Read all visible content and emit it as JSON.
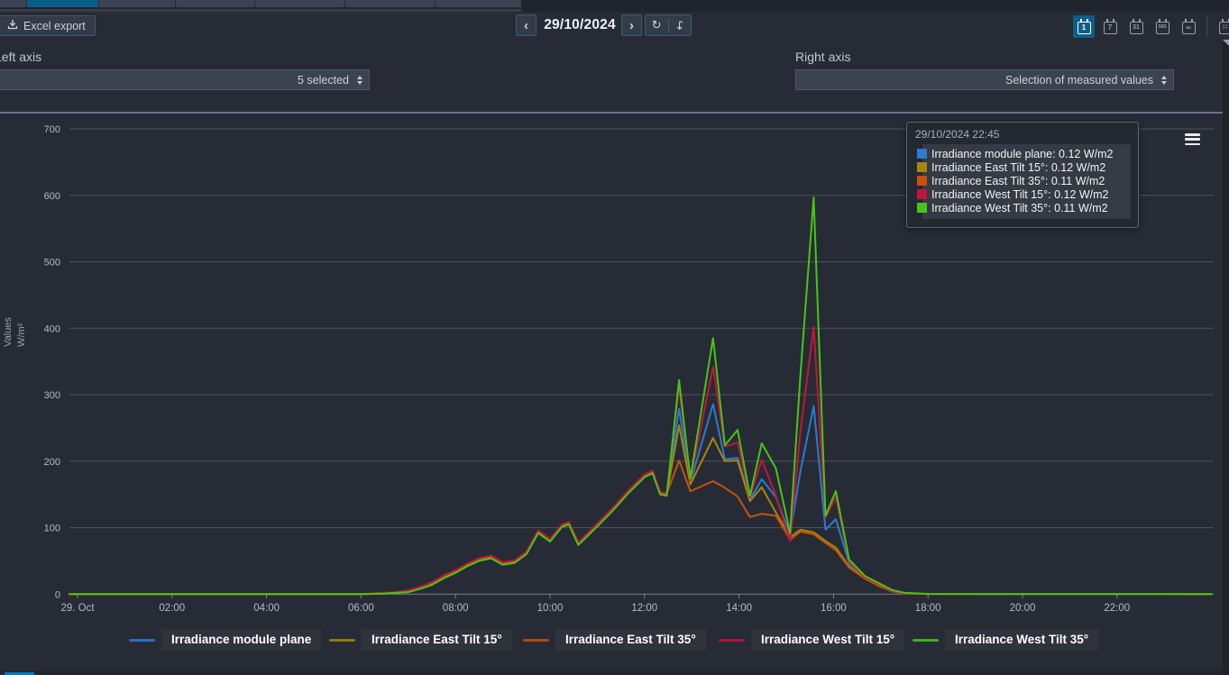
{
  "toolbar": {
    "excel_export_label": "Excel export"
  },
  "date_nav": {
    "prev": "‹",
    "date": "29/10/2024",
    "next": "›",
    "refresh_glyph": "↻",
    "forward_glyph": "↪"
  },
  "period_selector": {
    "items": [
      {
        "id": "day",
        "label": "1",
        "active": true
      },
      {
        "id": "week",
        "label": "7",
        "active": false
      },
      {
        "id": "month",
        "label": "31",
        "active": false
      },
      {
        "id": "year",
        "label": "365",
        "active": false
      },
      {
        "id": "total",
        "label": "∞",
        "active": false
      },
      {
        "id": "custom",
        "label": "∷",
        "active": false
      }
    ]
  },
  "axis_controls": {
    "left_label": "Left axis",
    "left_value": "5 selected",
    "right_label": "Right axis",
    "right_value": "Selection of measured values"
  },
  "tooltip": {
    "header": "29/10/2024 22:45",
    "rows": [
      {
        "text": "Irradiance module plane: 0.12 W/m2"
      },
      {
        "text": "Irradiance East Tilt 15°: 0.12 W/m2"
      },
      {
        "text": "Irradiance East Tilt 35°: 0.11 W/m2"
      },
      {
        "text": "Irradiance West Tilt 15°: 0.12 W/m2"
      },
      {
        "text": "Irradiance West Tilt 35°: 0.11 W/m2"
      }
    ]
  },
  "legend": {
    "items": [
      {
        "label": "Irradiance module plane"
      },
      {
        "label": "Irradiance East Tilt 15°"
      },
      {
        "label": "Irradiance East Tilt 35°"
      },
      {
        "label": "Irradiance West Tilt 15°"
      },
      {
        "label": "Irradiance West Tilt 35°"
      }
    ]
  },
  "chart_data": {
    "type": "line",
    "title": "",
    "grid": true,
    "legend_position": "bottom",
    "y_axis": {
      "title_lines": [
        "Values",
        "W/m²"
      ],
      "min": 0,
      "max": 700,
      "ticks": [
        0,
        100,
        200,
        300,
        400,
        500,
        600,
        700
      ]
    },
    "x_axis": {
      "range_hours": [
        0,
        24
      ],
      "ticks": [
        {
          "hour": 0,
          "label": "29. Oct"
        },
        {
          "hour": 2,
          "label": "02:00"
        },
        {
          "hour": 4,
          "label": "04:00"
        },
        {
          "hour": 6,
          "label": "06:00"
        },
        {
          "hour": 8,
          "label": "08:00"
        },
        {
          "hour": 10,
          "label": "10:00"
        },
        {
          "hour": 12,
          "label": "12:00"
        },
        {
          "hour": 14,
          "label": "14:00"
        },
        {
          "hour": 16,
          "label": "16:00"
        },
        {
          "hour": 18,
          "label": "18:00"
        },
        {
          "hour": 20,
          "label": "20:00"
        },
        {
          "hour": 22,
          "label": "22:00"
        }
      ]
    },
    "unit": "W/m2",
    "series": [
      {
        "name": "Irradiance module plane",
        "color": "#2b7bd4",
        "points": [
          [
            0,
            0
          ],
          [
            6,
            0
          ],
          [
            6.5,
            1
          ],
          [
            6.75,
            2
          ],
          [
            7,
            5
          ],
          [
            7.25,
            10
          ],
          [
            7.5,
            17
          ],
          [
            7.75,
            27
          ],
          [
            8,
            35
          ],
          [
            8.25,
            45
          ],
          [
            8.5,
            53
          ],
          [
            8.75,
            57
          ],
          [
            9,
            47
          ],
          [
            9.25,
            50
          ],
          [
            9.5,
            63
          ],
          [
            9.75,
            95
          ],
          [
            10,
            82
          ],
          [
            10.25,
            104
          ],
          [
            10.4,
            108
          ],
          [
            10.6,
            77
          ],
          [
            10.8,
            91
          ],
          [
            11,
            105
          ],
          [
            11.33,
            129
          ],
          [
            11.67,
            156
          ],
          [
            12,
            179
          ],
          [
            12.17,
            185
          ],
          [
            12.33,
            153
          ],
          [
            12.47,
            151
          ],
          [
            12.73,
            279
          ],
          [
            12.97,
            168
          ],
          [
            13.45,
            286
          ],
          [
            13.7,
            203
          ],
          [
            13.97,
            205
          ],
          [
            14.23,
            142
          ],
          [
            14.48,
            173
          ],
          [
            14.78,
            146
          ],
          [
            15.08,
            90
          ],
          [
            15.3,
            185
          ],
          [
            15.58,
            283
          ],
          [
            15.83,
            97
          ],
          [
            16.05,
            113
          ],
          [
            16.33,
            47
          ],
          [
            16.67,
            26
          ],
          [
            17,
            13
          ],
          [
            17.25,
            5
          ],
          [
            17.5,
            1
          ],
          [
            18,
            0.3
          ],
          [
            24,
            0.12
          ]
        ]
      },
      {
        "name": "Irradiance East Tilt 15°",
        "color": "#a8860d",
        "points": [
          [
            0,
            0
          ],
          [
            6,
            0
          ],
          [
            6.5,
            1
          ],
          [
            6.75,
            2
          ],
          [
            7,
            4
          ],
          [
            7.25,
            9
          ],
          [
            7.5,
            16
          ],
          [
            7.75,
            26
          ],
          [
            8,
            34
          ],
          [
            8.25,
            44
          ],
          [
            8.5,
            52
          ],
          [
            8.75,
            56
          ],
          [
            9,
            46
          ],
          [
            9.25,
            49
          ],
          [
            9.5,
            62
          ],
          [
            9.75,
            94
          ],
          [
            10,
            81
          ],
          [
            10.25,
            103
          ],
          [
            10.4,
            107
          ],
          [
            10.6,
            76
          ],
          [
            10.8,
            90
          ],
          [
            11,
            104
          ],
          [
            11.33,
            128
          ],
          [
            11.67,
            155
          ],
          [
            12,
            178
          ],
          [
            12.17,
            184
          ],
          [
            12.33,
            152
          ],
          [
            12.47,
            150
          ],
          [
            12.73,
            254
          ],
          [
            12.97,
            165
          ],
          [
            13.45,
            235
          ],
          [
            13.7,
            200
          ],
          [
            13.97,
            201
          ],
          [
            14.23,
            140
          ],
          [
            14.48,
            161
          ],
          [
            14.78,
            123
          ],
          [
            15.08,
            86
          ],
          [
            15.3,
            97
          ],
          [
            15.58,
            93
          ],
          [
            15.83,
            80
          ],
          [
            16.05,
            70
          ],
          [
            16.33,
            42
          ],
          [
            16.67,
            24
          ],
          [
            17,
            12
          ],
          [
            17.25,
            4
          ],
          [
            17.5,
            1
          ],
          [
            18,
            0.3
          ],
          [
            24,
            0.12
          ]
        ]
      },
      {
        "name": "Irradiance East Tilt 35°",
        "color": "#c4520e",
        "points": [
          [
            0,
            0
          ],
          [
            6,
            0
          ],
          [
            6.5,
            1
          ],
          [
            6.75,
            3
          ],
          [
            7,
            5
          ],
          [
            7.25,
            10
          ],
          [
            7.5,
            17
          ],
          [
            7.75,
            27
          ],
          [
            8,
            35
          ],
          [
            8.25,
            45
          ],
          [
            8.5,
            53
          ],
          [
            8.75,
            57
          ],
          [
            9,
            47
          ],
          [
            9.25,
            50
          ],
          [
            9.5,
            63
          ],
          [
            9.75,
            95
          ],
          [
            10,
            82
          ],
          [
            10.25,
            104
          ],
          [
            10.4,
            108
          ],
          [
            10.6,
            77
          ],
          [
            10.8,
            91
          ],
          [
            11,
            105
          ],
          [
            11.33,
            129
          ],
          [
            11.67,
            156
          ],
          [
            12,
            179
          ],
          [
            12.17,
            185
          ],
          [
            12.33,
            153
          ],
          [
            12.47,
            151
          ],
          [
            12.73,
            201
          ],
          [
            12.97,
            155
          ],
          [
            13.45,
            170
          ],
          [
            13.7,
            160
          ],
          [
            13.97,
            147
          ],
          [
            14.23,
            116
          ],
          [
            14.48,
            121
          ],
          [
            14.78,
            118
          ],
          [
            15.08,
            82
          ],
          [
            15.3,
            94
          ],
          [
            15.58,
            90
          ],
          [
            15.83,
            77
          ],
          [
            16.05,
            66
          ],
          [
            16.33,
            40
          ],
          [
            16.67,
            23
          ],
          [
            17,
            11
          ],
          [
            17.25,
            4
          ],
          [
            17.5,
            1
          ],
          [
            18,
            0.3
          ],
          [
            24,
            0.11
          ]
        ]
      },
      {
        "name": "Irradiance West Tilt 15°",
        "color": "#c1163c",
        "points": [
          [
            0,
            0
          ],
          [
            6,
            0
          ],
          [
            6.5,
            2
          ],
          [
            6.75,
            3
          ],
          [
            7,
            6
          ],
          [
            7.25,
            11
          ],
          [
            7.5,
            18
          ],
          [
            7.75,
            28
          ],
          [
            8,
            36
          ],
          [
            8.25,
            46
          ],
          [
            8.5,
            54
          ],
          [
            8.75,
            58
          ],
          [
            9,
            48
          ],
          [
            9.25,
            51
          ],
          [
            9.5,
            64
          ],
          [
            9.75,
            96
          ],
          [
            10,
            83
          ],
          [
            10.25,
            105
          ],
          [
            10.4,
            109
          ],
          [
            10.6,
            78
          ],
          [
            10.8,
            92
          ],
          [
            11,
            106
          ],
          [
            11.33,
            130
          ],
          [
            11.67,
            157
          ],
          [
            12,
            180
          ],
          [
            12.17,
            186
          ],
          [
            12.33,
            154
          ],
          [
            12.47,
            152
          ],
          [
            12.73,
            312
          ],
          [
            12.97,
            171
          ],
          [
            13.45,
            342
          ],
          [
            13.7,
            222
          ],
          [
            13.97,
            228
          ],
          [
            14.23,
            146
          ],
          [
            14.48,
            202
          ],
          [
            14.78,
            148
          ],
          [
            15.08,
            80
          ],
          [
            15.3,
            245
          ],
          [
            15.58,
            402
          ],
          [
            15.83,
            115
          ],
          [
            16.05,
            146
          ],
          [
            16.33,
            50
          ],
          [
            16.67,
            25
          ],
          [
            17,
            14
          ],
          [
            17.25,
            5
          ],
          [
            17.5,
            1
          ],
          [
            18,
            0.3
          ],
          [
            24,
            0.12
          ]
        ]
      },
      {
        "name": "Irradiance West Tilt 35°",
        "color": "#48c515",
        "points": [
          [
            0,
            0
          ],
          [
            6,
            0
          ],
          [
            6.5,
            1
          ],
          [
            6.75,
            2
          ],
          [
            7,
            3
          ],
          [
            7.25,
            8
          ],
          [
            7.5,
            14
          ],
          [
            7.75,
            24
          ],
          [
            8,
            32
          ],
          [
            8.25,
            42
          ],
          [
            8.5,
            50
          ],
          [
            8.75,
            54
          ],
          [
            9,
            44
          ],
          [
            9.25,
            47
          ],
          [
            9.5,
            60
          ],
          [
            9.75,
            92
          ],
          [
            10,
            79
          ],
          [
            10.25,
            101
          ],
          [
            10.4,
            105
          ],
          [
            10.6,
            74
          ],
          [
            10.8,
            88
          ],
          [
            11,
            102
          ],
          [
            11.33,
            126
          ],
          [
            11.67,
            153
          ],
          [
            12,
            176
          ],
          [
            12.17,
            182
          ],
          [
            12.33,
            150
          ],
          [
            12.47,
            148
          ],
          [
            12.73,
            322
          ],
          [
            12.97,
            174
          ],
          [
            13.45,
            385
          ],
          [
            13.7,
            224
          ],
          [
            13.97,
            247
          ],
          [
            14.23,
            148
          ],
          [
            14.48,
            227
          ],
          [
            14.78,
            189
          ],
          [
            15.08,
            92
          ],
          [
            15.3,
            330
          ],
          [
            15.58,
            597
          ],
          [
            15.83,
            118
          ],
          [
            16.05,
            155
          ],
          [
            16.33,
            52
          ],
          [
            16.67,
            27
          ],
          [
            17,
            15
          ],
          [
            17.25,
            6
          ],
          [
            17.5,
            2
          ],
          [
            18,
            0.4
          ],
          [
            24,
            0.11
          ]
        ]
      }
    ]
  }
}
